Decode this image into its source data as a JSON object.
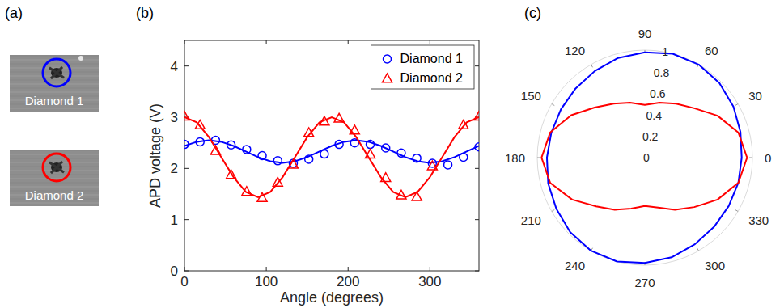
{
  "chart_data": [
    {
      "type": "image",
      "title": "(a)",
      "categories": [
        "Diamond 1",
        "Diamond 2"
      ],
      "colors": [
        "#0000ff",
        "#ff0000"
      ]
    },
    {
      "type": "scatter",
      "title": "(b)",
      "x_label": "Angle (degrees)",
      "y_label": "APD voltage (V)",
      "xlim": [
        0,
        360
      ],
      "ylim": [
        0,
        4.5
      ],
      "xticks": [
        0,
        100,
        200,
        300
      ],
      "yticks": [
        0,
        1,
        2,
        3,
        4
      ],
      "grid": false,
      "legend": "upper right",
      "series": [
        {
          "name": "Diamond 1",
          "color": "#0000ff",
          "marker": "circle",
          "x": [
            0,
            19,
            38,
            57,
            76,
            95,
            114,
            133,
            152,
            171,
            189,
            208,
            227,
            246,
            265,
            284,
            303,
            322,
            341,
            360
          ],
          "values": [
            2.47,
            2.52,
            2.55,
            2.46,
            2.37,
            2.25,
            2.15,
            2.1,
            2.18,
            2.28,
            2.47,
            2.5,
            2.47,
            2.4,
            2.3,
            2.2,
            2.1,
            2.07,
            2.22,
            2.42
          ],
          "fit_x": [
            0,
            15,
            30,
            45,
            60,
            75,
            90,
            105,
            120,
            135,
            150,
            165,
            180,
            195,
            210,
            225,
            240,
            255,
            270,
            285,
            300,
            315,
            330,
            345,
            360
          ],
          "fit": [
            2.44,
            2.52,
            2.55,
            2.52,
            2.44,
            2.33,
            2.22,
            2.14,
            2.11,
            2.14,
            2.22,
            2.33,
            2.44,
            2.52,
            2.55,
            2.52,
            2.44,
            2.33,
            2.22,
            2.14,
            2.11,
            2.14,
            2.22,
            2.33,
            2.44
          ]
        },
        {
          "name": "Diamond 2",
          "color": "#ff0000",
          "marker": "triangle",
          "x": [
            0,
            19,
            38,
            57,
            76,
            95,
            114,
            133,
            152,
            171,
            189,
            208,
            227,
            246,
            265,
            284,
            303,
            341,
            360
          ],
          "values": [
            3.02,
            2.85,
            2.35,
            1.88,
            1.55,
            1.43,
            1.73,
            2.08,
            2.7,
            2.92,
            2.98,
            2.75,
            2.28,
            1.82,
            1.48,
            1.45,
            2.05,
            2.85,
            3.02
          ],
          "fit_x": [
            0,
            15,
            30,
            45,
            60,
            75,
            90,
            105,
            120,
            135,
            150,
            165,
            180,
            195,
            210,
            225,
            240,
            255,
            270,
            285,
            300,
            315,
            330,
            345,
            360
          ],
          "fit": [
            3.0,
            2.9,
            2.61,
            2.22,
            1.83,
            1.54,
            1.44,
            1.54,
            1.83,
            2.22,
            2.61,
            2.9,
            3.0,
            2.9,
            2.61,
            2.22,
            1.83,
            1.54,
            1.44,
            1.54,
            1.83,
            2.22,
            2.61,
            2.9,
            3.0
          ]
        }
      ]
    },
    {
      "type": "polar",
      "title": "(c)",
      "xlim": [
        0,
        360
      ],
      "xticks": [
        0,
        30,
        60,
        90,
        120,
        150,
        180,
        210,
        240,
        270,
        300,
        330
      ],
      "ylim": [
        0,
        1
      ],
      "yticks": [
        0,
        0.2,
        0.4,
        0.6,
        0.8,
        1
      ],
      "grid": false,
      "series": [
        {
          "color": "#0000ff",
          "x": [
            0,
            15,
            30,
            45,
            60,
            75,
            90,
            105,
            120,
            135,
            150,
            165,
            180,
            195,
            210,
            225,
            240,
            255,
            270,
            285,
            300,
            315,
            330,
            345,
            360
          ],
          "values": [
            0.9,
            0.92,
            0.95,
            0.98,
            1.0,
            1.0,
            0.98,
            0.96,
            0.93,
            0.91,
            0.9,
            0.9,
            0.91,
            0.93,
            0.95,
            0.98,
            1.0,
            1.0,
            0.98,
            0.96,
            0.93,
            0.91,
            0.9,
            0.9,
            0.9
          ]
        },
        {
          "color": "#ff0000",
          "x": [
            0,
            15,
            30,
            45,
            60,
            75,
            90,
            105,
            120,
            135,
            150,
            165,
            180,
            195,
            210,
            225,
            240,
            255,
            270,
            285,
            300,
            315,
            330,
            345,
            360
          ],
          "values": [
            0.95,
            0.9,
            0.78,
            0.65,
            0.58,
            0.53,
            0.49,
            0.53,
            0.58,
            0.66,
            0.79,
            0.91,
            0.96,
            0.91,
            0.78,
            0.64,
            0.56,
            0.49,
            0.45,
            0.48,
            0.56,
            0.65,
            0.78,
            0.9,
            0.95
          ]
        }
      ]
    }
  ]
}
